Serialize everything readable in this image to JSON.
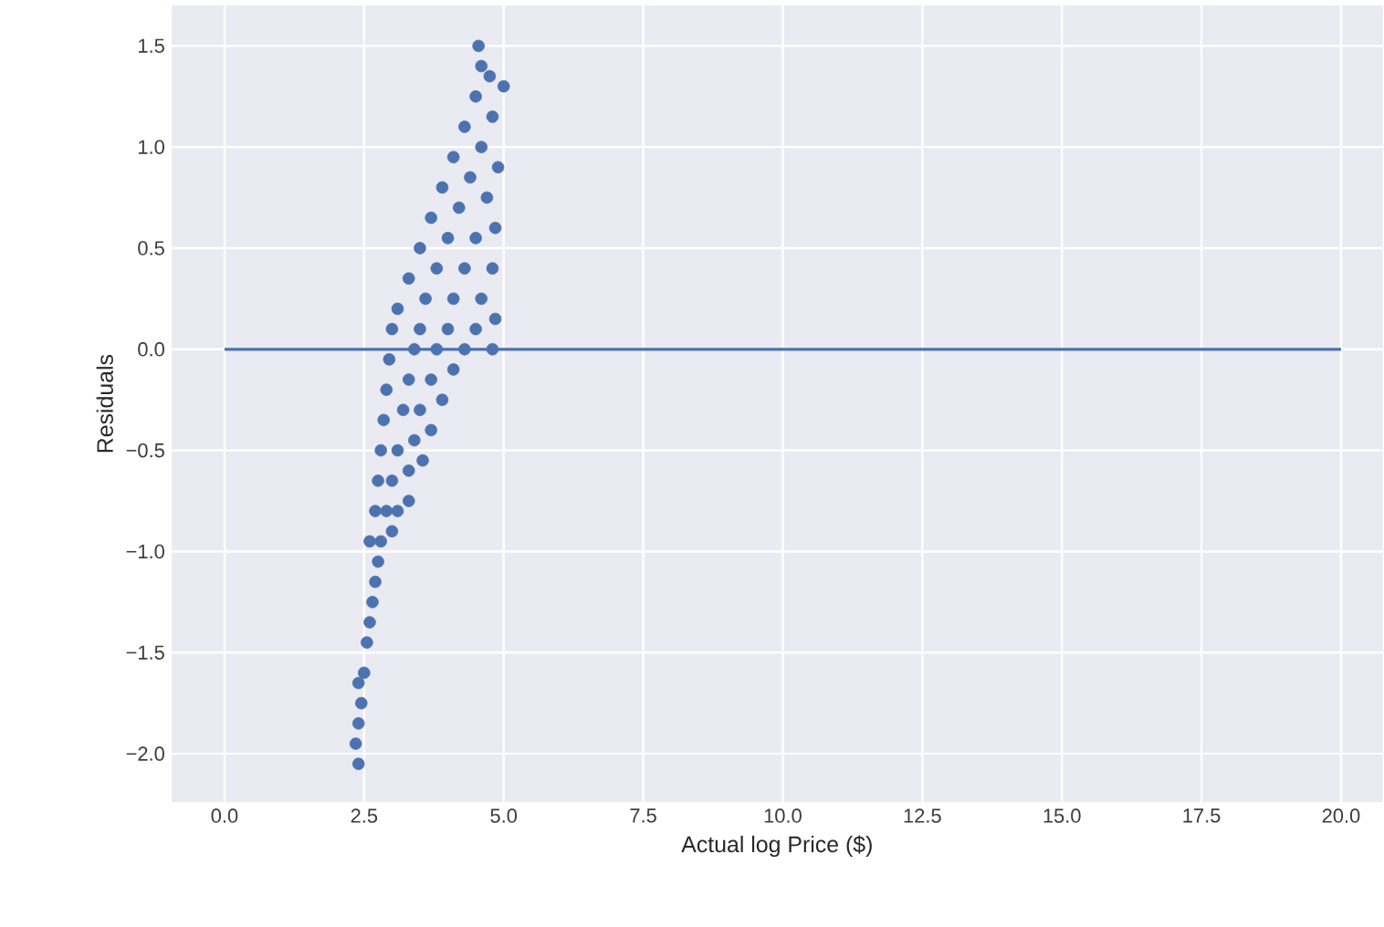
{
  "chart_data": {
    "type": "scatter",
    "xlabel": "Actual log Price ($)",
    "ylabel": "Residuals",
    "grid": true,
    "xlim": [
      -0.95,
      20.75
    ],
    "ylim": [
      -2.24,
      1.7
    ],
    "xticks": [
      {
        "value": 0,
        "label": "0.0"
      },
      2.5,
      {
        "value": 5,
        "label": "5.0"
      },
      7.5,
      {
        "value": 10,
        "label": "10.0"
      },
      12.5,
      {
        "value": 15,
        "label": "15.0"
      },
      17.5,
      {
        "value": 20,
        "label": "20.0"
      }
    ],
    "yticks": [
      {
        "value": -2,
        "label": "−2.0"
      },
      {
        "value": -1.5,
        "label": "−1.5"
      },
      {
        "value": -1,
        "label": "−1.0"
      },
      {
        "value": -0.5,
        "label": "−0.5"
      },
      {
        "value": 0,
        "label": "0.0"
      },
      0.5,
      {
        "value": 1,
        "label": "1.0"
      },
      1.5
    ],
    "series": [
      {
        "marker": "circle",
        "color": "#4c72b0",
        "x": [
          2.4,
          2.35,
          2.4,
          2.45,
          2.4,
          2.5,
          2.55,
          2.6,
          2.65,
          2.7,
          2.75,
          2.6,
          2.8,
          3.0,
          2.7,
          2.9,
          3.1,
          3.3,
          2.75,
          3.0,
          3.3,
          3.55,
          2.8,
          3.1,
          3.4,
          3.7,
          2.85,
          3.2,
          3.5,
          3.9,
          2.9,
          3.3,
          3.7,
          4.1,
          2.95,
          3.4,
          3.8,
          4.3,
          4.8,
          3.0,
          3.5,
          4.0,
          4.5,
          4.85,
          3.1,
          3.6,
          4.1,
          4.6,
          3.3,
          3.8,
          4.3,
          4.8,
          3.5,
          4.0,
          4.5,
          4.85,
          3.7,
          4.2,
          4.7,
          3.9,
          4.4,
          4.9,
          4.1,
          4.6,
          4.3,
          4.8,
          4.5,
          5.0,
          4.6,
          4.75,
          4.55
        ],
        "values": [
          -2.05,
          -1.95,
          -1.85,
          -1.75,
          -1.65,
          -1.6,
          -1.45,
          -1.35,
          -1.25,
          -1.15,
          -1.05,
          -0.95,
          -0.95,
          -0.9,
          -0.8,
          -0.8,
          -0.8,
          -0.75,
          -0.65,
          -0.65,
          -0.6,
          -0.55,
          -0.5,
          -0.5,
          -0.45,
          -0.4,
          -0.35,
          -0.3,
          -0.3,
          -0.25,
          -0.2,
          -0.15,
          -0.15,
          -0.1,
          -0.05,
          0.0,
          0.0,
          0.0,
          0.0,
          0.1,
          0.1,
          0.1,
          0.1,
          0.15,
          0.2,
          0.25,
          0.25,
          0.25,
          0.35,
          0.4,
          0.4,
          0.4,
          0.5,
          0.55,
          0.55,
          0.6,
          0.65,
          0.7,
          0.75,
          0.8,
          0.85,
          0.9,
          0.95,
          1.0,
          1.1,
          1.15,
          1.25,
          1.3,
          1.4,
          1.35,
          1.5
        ]
      },
      {
        "type": "line",
        "color": "#4c72b0",
        "x": [
          0,
          20
        ],
        "values": [
          0,
          0
        ]
      }
    ]
  }
}
